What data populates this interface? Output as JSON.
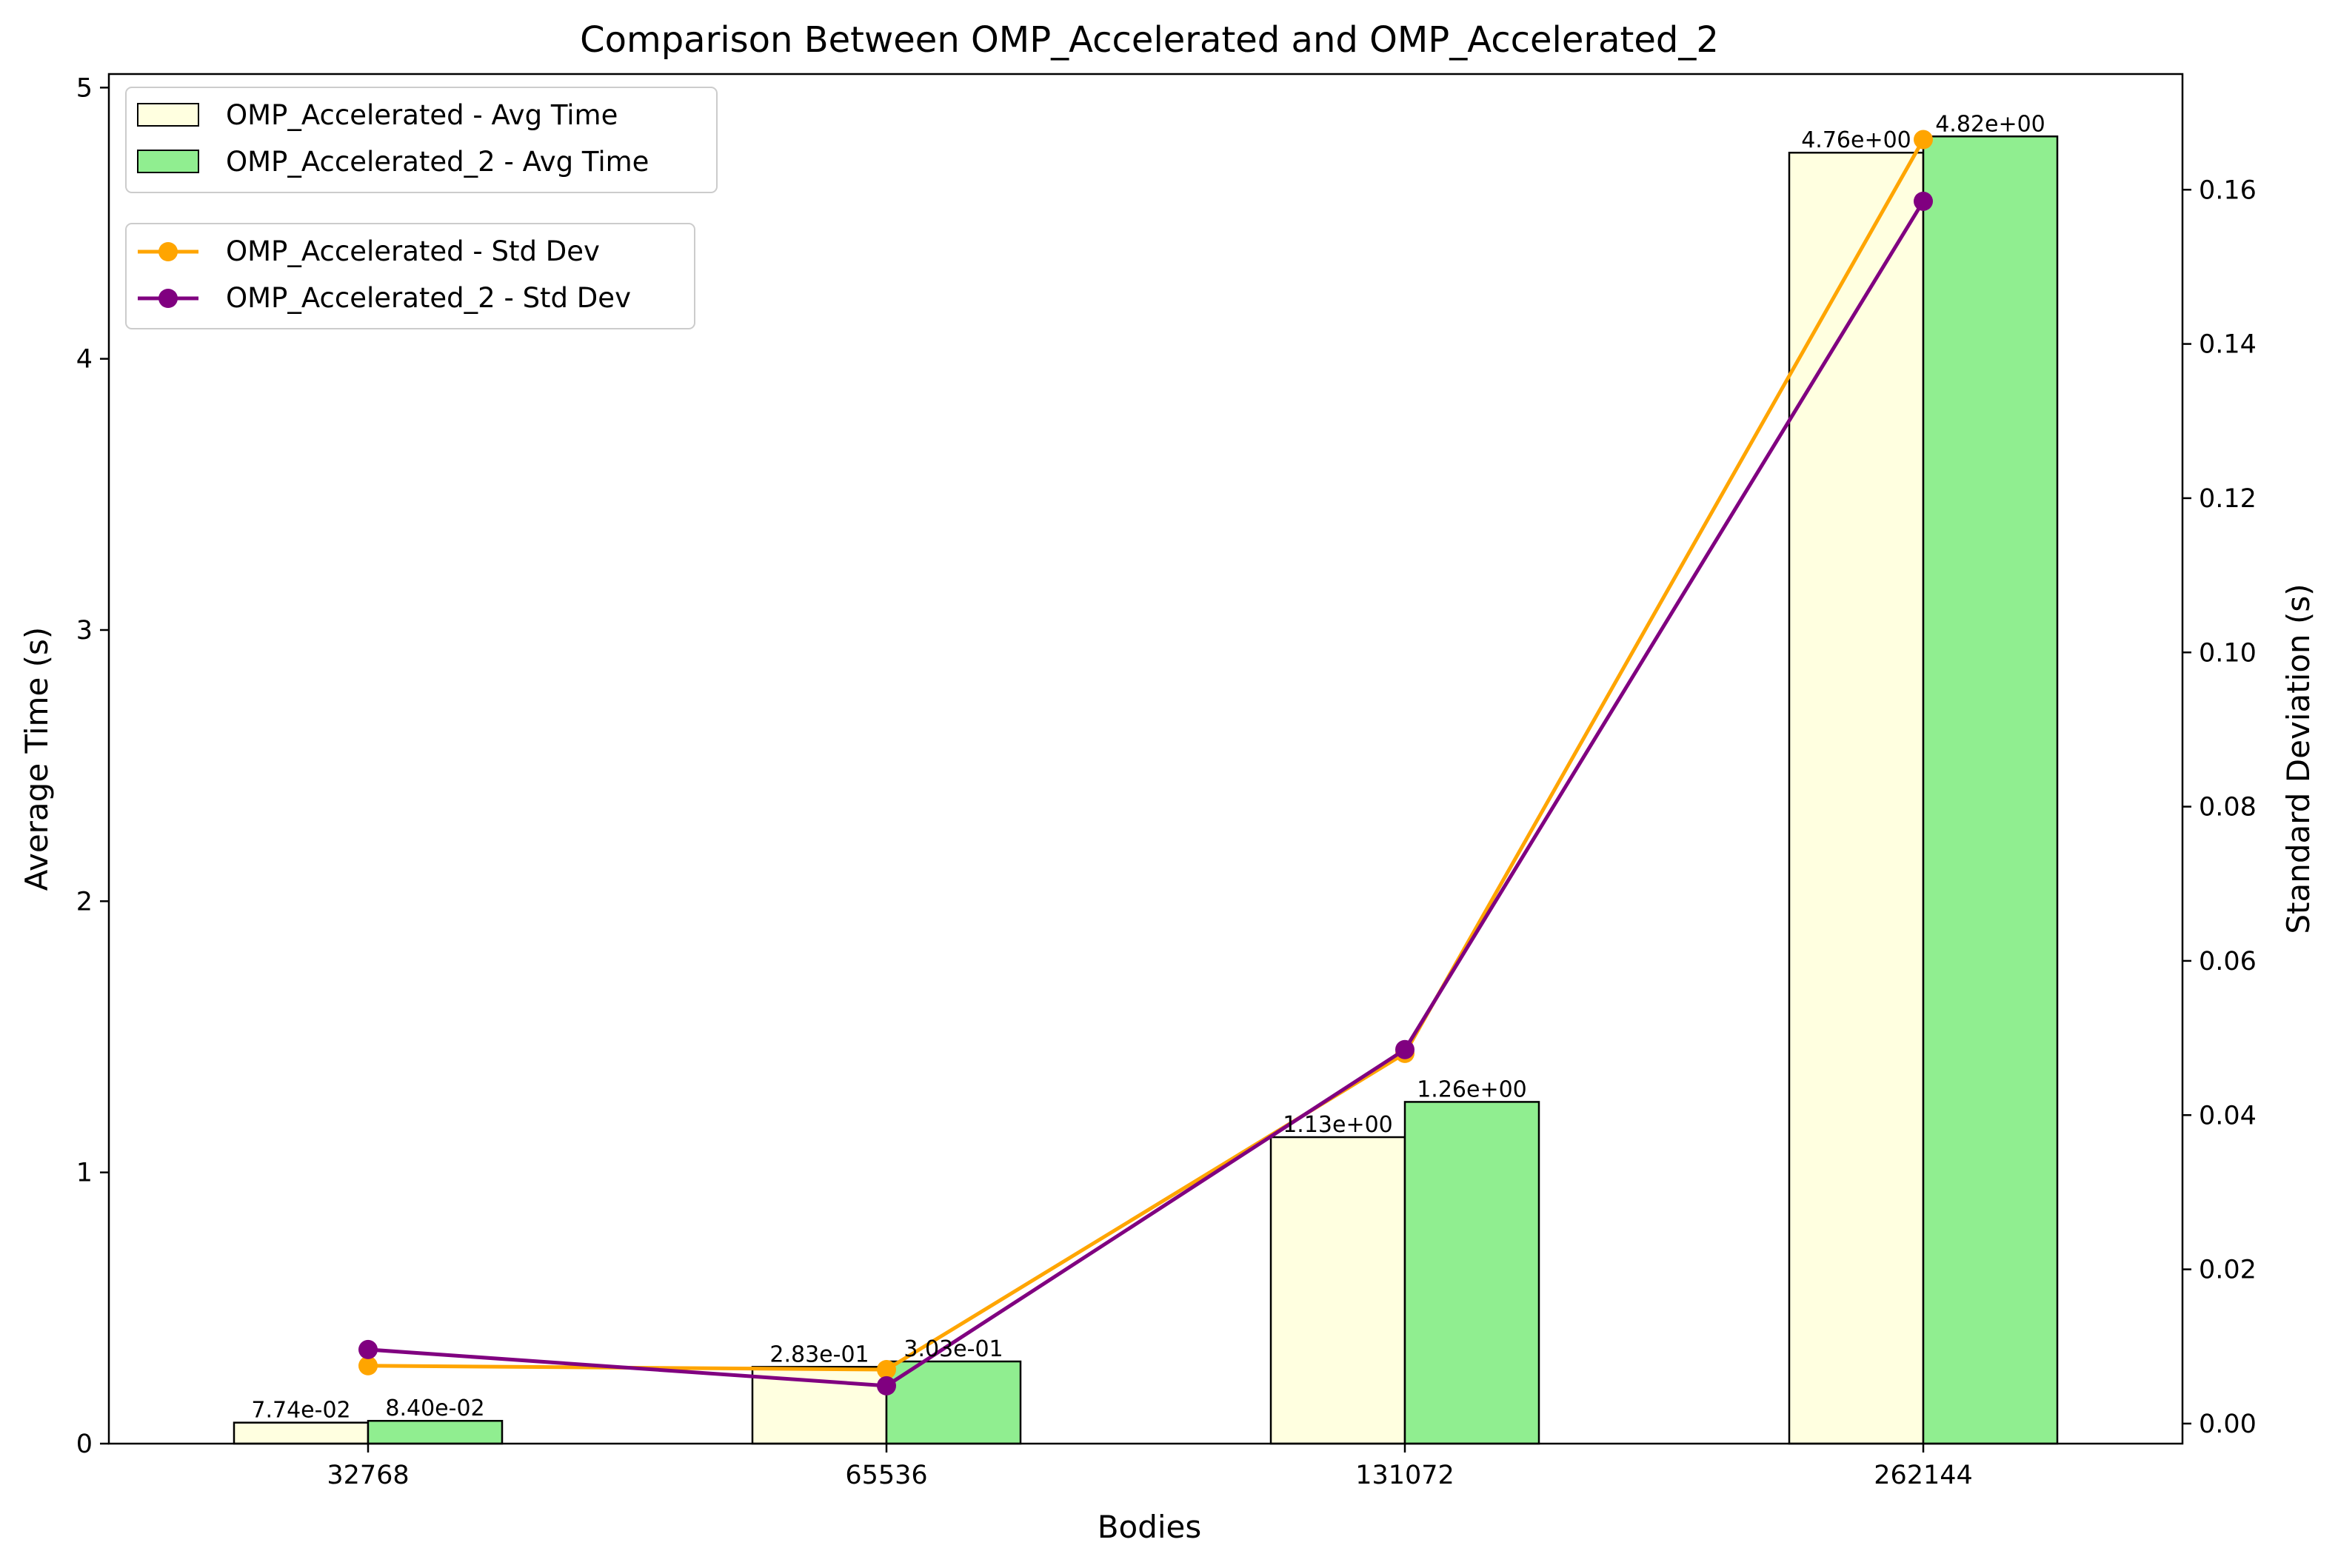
{
  "chart_data": {
    "type": "bar",
    "title": "Comparison Between OMP_Accelerated and OMP_Accelerated_2",
    "xlabel": "Bodies",
    "ylabel": "Average Time (s)",
    "y2label": "Standard Deviation (s)",
    "categories": [
      "32768",
      "65536",
      "131072",
      "262144"
    ],
    "ylim": [
      0,
      5.05
    ],
    "y2lim": [
      -0.0026,
      0.175
    ],
    "yticks": [
      "0",
      "1",
      "2",
      "3",
      "4",
      "5"
    ],
    "y2ticks": [
      "0.00",
      "0.02",
      "0.04",
      "0.06",
      "0.08",
      "0.10",
      "0.12",
      "0.14",
      "0.16"
    ],
    "bar_series": [
      {
        "name": "OMP_Accelerated - Avg Time",
        "values": [
          0.0774,
          0.283,
          1.13,
          4.76
        ],
        "labels": [
          "7.74e-02",
          "2.83e-01",
          "1.13e+00",
          "4.76e+00"
        ],
        "color": "#ffffe0"
      },
      {
        "name": "OMP_Accelerated_2 - Avg Time",
        "values": [
          0.084,
          0.303,
          1.26,
          4.82
        ],
        "labels": [
          "8.40e-02",
          "3.03e-01",
          "1.26e+00",
          "4.82e+00"
        ],
        "color": "#90ee90"
      }
    ],
    "line_series": [
      {
        "name": "OMP_Accelerated - Std Dev",
        "values": [
          0.0075,
          0.007,
          0.048,
          0.1665
        ],
        "color": "#ffa500"
      },
      {
        "name": "OMP_Accelerated_2 - Std Dev",
        "values": [
          0.0096,
          0.0049,
          0.0485,
          0.1585
        ],
        "color": "#800080"
      }
    ],
    "grid": false,
    "legend_position": "top-left"
  }
}
